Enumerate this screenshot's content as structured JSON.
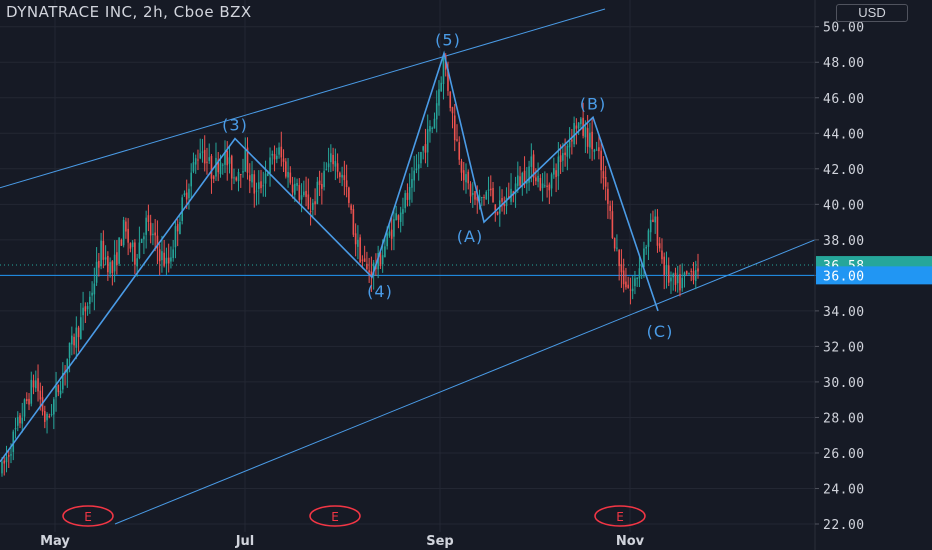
{
  "header": {
    "symbol_title": "DYNATRACE INC, 2h, Cboe BZX",
    "currency_button": "USD"
  },
  "chart_data": {
    "type": "candlestick",
    "title": "DYNATRACE INC, 2h, Cboe BZX",
    "ylabel": "USD",
    "ylim": [
      22,
      51
    ],
    "y_ticks": [
      "22.00",
      "24.00",
      "26.00",
      "28.00",
      "30.00",
      "32.00",
      "34.00",
      "36.00",
      "38.00",
      "40.00",
      "42.00",
      "44.00",
      "46.00",
      "48.00",
      "50.00"
    ],
    "x_ticks": [
      "May",
      "Jul",
      "Sep",
      "Nov"
    ],
    "grid": true,
    "price_labels": {
      "last": "36.58",
      "level": "36.00"
    },
    "colors": {
      "background": "#161a25",
      "up": "#26a69a",
      "down": "#ef5350",
      "drawing": "#4a9be6",
      "last_price": "#26a69a",
      "level": "#2196f3",
      "earnings": "#f23645"
    },
    "price_path": [
      25.0,
      26.8,
      28.5,
      30.2,
      27.6,
      29.5,
      31.5,
      33.2,
      34.8,
      37.5,
      36.2,
      38.6,
      37.0,
      39.0,
      37.6,
      36.5,
      39.2,
      41.5,
      43.3,
      41.8,
      42.8,
      41.6,
      42.6,
      40.5,
      42.0,
      43.0,
      41.5,
      40.5,
      39.8,
      41.5,
      42.6,
      41.2,
      38.0,
      36.2,
      36.6,
      38.2,
      39.8,
      40.6,
      43.0,
      44.5,
      48.2,
      44.0,
      41.2,
      40.0,
      40.8,
      39.6,
      40.6,
      41.5,
      42.2,
      40.8,
      41.8,
      43.2,
      44.6,
      43.8,
      42.6,
      39.5,
      36.2,
      35.0,
      37.2,
      39.2,
      36.2,
      35.3,
      35.9,
      36.6
    ],
    "waves": [
      {
        "label": "(3)",
        "price": 43.7
      },
      {
        "label": "(4)",
        "price": 35.9
      },
      {
        "label": "(5)",
        "price": 48.5
      },
      {
        "label": "(A)",
        "price": 39.0
      },
      {
        "label": "(B)",
        "price": 44.9
      },
      {
        "label": "(C)",
        "price": 34.0
      }
    ],
    "earnings_markers": [
      "E",
      "E",
      "E"
    ],
    "channel": {
      "upper": [
        [
          -20,
          40.6
        ],
        [
          605,
          51.0
        ]
      ],
      "lower": [
        [
          115,
          22.0
        ],
        [
          815,
          38.0
        ]
      ]
    }
  }
}
